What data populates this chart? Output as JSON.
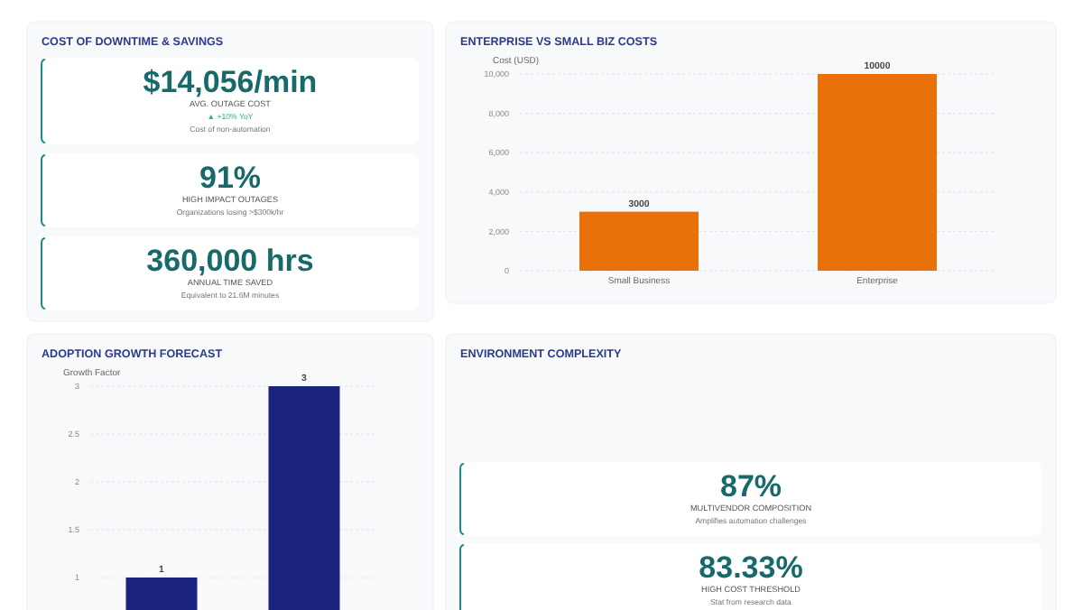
{
  "chart_data": [
    {
      "type": "other",
      "title": "COST OF DOWNTIME & SAVINGS",
      "categories": [
        "AVG. OUTAGE COST",
        "HIGH IMPACT OUTAGES",
        "ANNUAL TIME SAVED"
      ],
      "value_labels": [
        "$14,056/min",
        "91%",
        "360,000 hrs"
      ],
      "annotations": [
        "▲ +10% YoY",
        "Cost of non-automation",
        "Organizations losing >$300k/hr",
        "Equivalent to 21.6M minutes"
      ]
    },
    {
      "type": "bar",
      "title": "ENTERPRISE VS SMALL BIZ COSTS",
      "ylabel": "Cost (USD)",
      "categories": [
        "Small Business",
        "Enterprise"
      ],
      "values": [
        3000,
        10000
      ],
      "color": "#e8710a",
      "ylim": [
        0,
        10000
      ],
      "yticks": [
        0,
        {
          "value": 2000,
          "label": "2,000"
        },
        {
          "value": 4000,
          "label": "4,000"
        },
        {
          "value": 6000,
          "label": "6,000"
        },
        {
          "value": 8000,
          "label": "8,000"
        },
        {
          "value": 10000,
          "label": "10,000"
        }
      ],
      "grid": "y",
      "data_labels": true
    },
    {
      "type": "bar",
      "title": "ADOPTION GROWTH FORECAST",
      "ylabel": "Growth Factor",
      "categories": [
        null,
        null
      ],
      "values": [
        1,
        3
      ],
      "color": "#1a237e",
      "ylim": [
        0,
        3
      ],
      "yticks": [
        1,
        1.5,
        2,
        2.5,
        3
      ],
      "grid": "y",
      "data_labels": true
    },
    {
      "type": "other",
      "title": "ENVIRONMENT COMPLEXITY",
      "categories": [
        "MULTIVENDOR COMPOSITION",
        "HIGH COST THRESHOLD"
      ],
      "value_labels": [
        "87%",
        "83.33%"
      ],
      "annotations": [
        "Amplifies automation challenges",
        "Stat from research data"
      ]
    }
  ]
}
